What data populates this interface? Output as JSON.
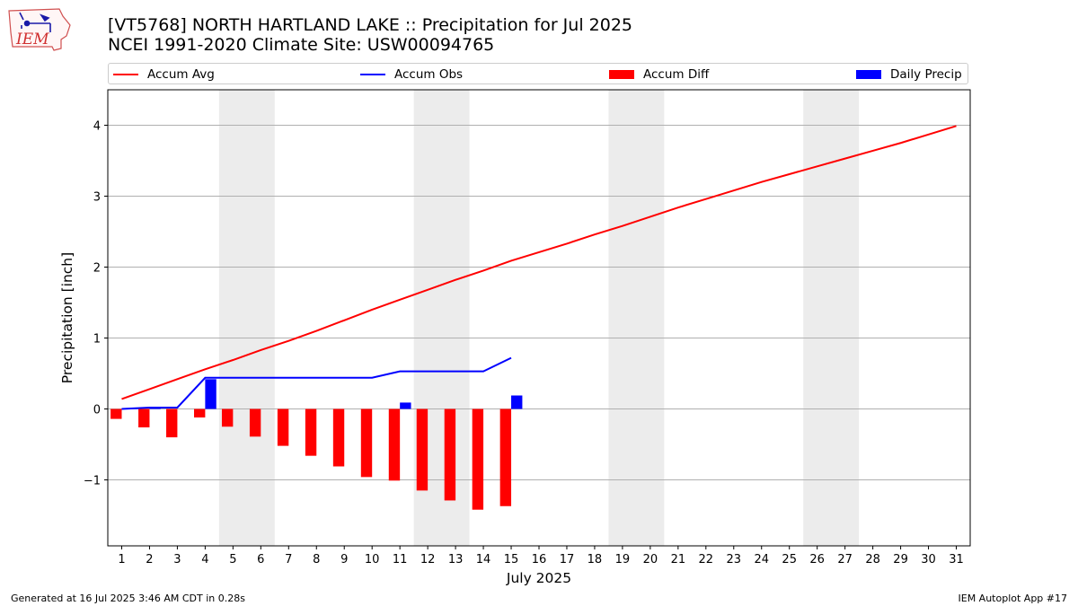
{
  "header": {
    "title_line1": "[VT5768] NORTH HARTLAND LAKE :: Precipitation for Jul 2025",
    "title_line2": "NCEI 1991-2020 Climate Site: USW00094765"
  },
  "logo": {
    "text": "IEM"
  },
  "footer": {
    "left": "Generated at 16 Jul 2025 3:46 AM CDT in 0.28s",
    "right": "IEM Autoplot App #17"
  },
  "colors": {
    "accum_avg": "#ff0000",
    "accum_obs": "#0000ff",
    "accum_diff": "#ff0000",
    "daily_precip": "#0000ff",
    "weekend_shade": "#ececec",
    "grid": "#b0b0b0"
  },
  "legend": [
    {
      "label": "Accum Avg",
      "kind": "line",
      "color": "#ff0000"
    },
    {
      "label": "Accum Obs",
      "kind": "line",
      "color": "#0000ff"
    },
    {
      "label": "Accum Diff",
      "kind": "box",
      "color": "#ff0000"
    },
    {
      "label": "Daily Precip",
      "kind": "box",
      "color": "#0000ff"
    }
  ],
  "chart_data": {
    "type": "line",
    "xlabel": "July 2025",
    "ylabel": "Precipitation [inch]",
    "xlim": [
      0.5,
      31.5
    ],
    "ylim": [
      -1.93,
      4.5
    ],
    "grid": "horizontal",
    "legend_position": "top",
    "x": [
      1,
      2,
      3,
      4,
      5,
      6,
      7,
      8,
      9,
      10,
      11,
      12,
      13,
      14,
      15,
      16,
      17,
      18,
      19,
      20,
      21,
      22,
      23,
      24,
      25,
      26,
      27,
      28,
      29,
      30,
      31
    ],
    "x_tick_labels": [
      "1",
      "2",
      "3",
      "4",
      "5",
      "6",
      "7",
      "8",
      "9",
      "10",
      "11",
      "12",
      "13",
      "14",
      "15",
      "16",
      "17",
      "18",
      "19",
      "20",
      "21",
      "22",
      "23",
      "24",
      "25",
      "26",
      "27",
      "28",
      "29",
      "30",
      "31"
    ],
    "y_ticks": [
      -1,
      0,
      1,
      2,
      3,
      4
    ],
    "y_tick_labels": [
      "−1",
      "0",
      "1",
      "2",
      "3",
      "4"
    ],
    "weekend_spans": [
      [
        4.5,
        6.5
      ],
      [
        11.5,
        13.5
      ],
      [
        18.5,
        20.5
      ],
      [
        25.5,
        27.5
      ]
    ],
    "series": [
      {
        "name": "Accum Avg",
        "kind": "line",
        "x": [
          1,
          2,
          3,
          4,
          5,
          6,
          7,
          8,
          9,
          10,
          11,
          12,
          13,
          14,
          15,
          16,
          17,
          18,
          19,
          20,
          21,
          22,
          23,
          24,
          25,
          26,
          27,
          28,
          29,
          30,
          31
        ],
        "values": [
          0.14,
          0.28,
          0.42,
          0.56,
          0.69,
          0.83,
          0.96,
          1.1,
          1.25,
          1.4,
          1.54,
          1.68,
          1.82,
          1.95,
          2.09,
          2.21,
          2.33,
          2.46,
          2.58,
          2.71,
          2.84,
          2.96,
          3.08,
          3.2,
          3.31,
          3.42,
          3.53,
          3.64,
          3.75,
          3.87,
          3.99
        ]
      },
      {
        "name": "Accum Obs",
        "kind": "line",
        "x": [
          1,
          2,
          3,
          4,
          5,
          6,
          7,
          8,
          9,
          10,
          11,
          12,
          13,
          14,
          15
        ],
        "values": [
          0.0,
          0.02,
          0.02,
          0.44,
          0.44,
          0.44,
          0.44,
          0.44,
          0.44,
          0.44,
          0.53,
          0.53,
          0.53,
          0.53,
          0.72
        ]
      },
      {
        "name": "Accum Diff",
        "kind": "bar",
        "offset": -0.2,
        "x": [
          1,
          2,
          3,
          4,
          5,
          6,
          7,
          8,
          9,
          10,
          11,
          12,
          13,
          14,
          15
        ],
        "values": [
          -0.14,
          -0.26,
          -0.4,
          -0.12,
          -0.25,
          -0.39,
          -0.52,
          -0.66,
          -0.81,
          -0.96,
          -1.01,
          -1.15,
          -1.29,
          -1.42,
          -1.37
        ]
      },
      {
        "name": "Daily Precip",
        "kind": "bar",
        "offset": 0.2,
        "x": [
          1,
          2,
          3,
          4,
          5,
          6,
          7,
          8,
          9,
          10,
          11,
          12,
          13,
          14,
          15
        ],
        "values": [
          0.0,
          0.02,
          0.0,
          0.42,
          0.0,
          0.0,
          0.0,
          0.0,
          0.0,
          0.0,
          0.09,
          0.0,
          0.0,
          0.0,
          0.19
        ]
      }
    ]
  }
}
